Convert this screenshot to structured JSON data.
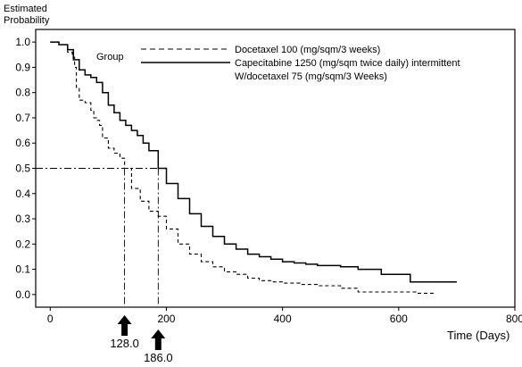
{
  "chart_data": {
    "type": "line",
    "title": "",
    "ylabel": "Estimated Probability",
    "xlabel": "Time (Days)",
    "xlim": [
      -25,
      800
    ],
    "ylim": [
      -0.05,
      1.05
    ],
    "x_ticks": [
      0,
      200,
      400,
      600,
      800
    ],
    "y_ticks": [
      0.0,
      0.1,
      0.2,
      0.3,
      0.4,
      0.5,
      0.6,
      0.7,
      0.8,
      0.9,
      1.0
    ],
    "y_tick_labels": [
      "0.0",
      "0.1",
      "0.2",
      "0.3",
      "0.4",
      "0.5",
      "0.6",
      "0.7",
      "0.8",
      "0.9",
      "1.0"
    ],
    "grid": false,
    "legend": {
      "title": "Group",
      "position": "top-right",
      "entries": [
        {
          "series": 0,
          "lines": [
            "Docetaxel 100 (mg/sqm/3 weeks)"
          ]
        },
        {
          "series": 1,
          "lines": [
            "Capecitabine 1250 (mg/sqm twice daily) intermittent",
            "W/docetaxel 75 (mg/sqm/3 Weeks)"
          ]
        }
      ]
    },
    "series": [
      {
        "name": "Docetaxel 100 (mg/sqm/3 weeks)",
        "style": "dashed",
        "x": [
          0,
          15,
          30,
          38,
          42,
          45,
          50,
          60,
          70,
          75,
          80,
          85,
          90,
          100,
          110,
          120,
          128,
          140,
          155,
          170,
          186,
          200,
          220,
          240,
          260,
          280,
          300,
          320,
          340,
          360,
          380,
          400,
          430,
          460,
          500,
          530,
          560,
          600,
          630,
          660
        ],
        "y": [
          1.0,
          0.99,
          0.96,
          0.94,
          0.9,
          0.82,
          0.77,
          0.76,
          0.73,
          0.7,
          0.69,
          0.67,
          0.62,
          0.58,
          0.56,
          0.54,
          0.5,
          0.42,
          0.37,
          0.33,
          0.31,
          0.26,
          0.2,
          0.16,
          0.13,
          0.11,
          0.09,
          0.08,
          0.065,
          0.055,
          0.05,
          0.045,
          0.04,
          0.035,
          0.025,
          0.01,
          0.01,
          0.01,
          0.005,
          0.005
        ]
      },
      {
        "name": "Capecitabine 1250 (mg/sqm twice daily) intermittent W/docetaxel 75 (mg/sqm/3 Weeks)",
        "style": "solid",
        "x": [
          0,
          15,
          30,
          40,
          50,
          60,
          70,
          80,
          90,
          100,
          110,
          120,
          130,
          140,
          150,
          160,
          170,
          186,
          200,
          220,
          240,
          260,
          280,
          300,
          320,
          340,
          360,
          380,
          400,
          420,
          440,
          460,
          480,
          500,
          530,
          570,
          600,
          620,
          660,
          700
        ],
        "y": [
          1.0,
          0.99,
          0.97,
          0.93,
          0.89,
          0.87,
          0.86,
          0.84,
          0.8,
          0.75,
          0.72,
          0.69,
          0.67,
          0.65,
          0.63,
          0.6,
          0.57,
          0.5,
          0.44,
          0.38,
          0.32,
          0.27,
          0.23,
          0.2,
          0.18,
          0.16,
          0.15,
          0.14,
          0.13,
          0.125,
          0.12,
          0.115,
          0.115,
          0.11,
          0.1,
          0.08,
          0.08,
          0.05,
          0.05,
          0.05
        ]
      }
    ],
    "median_line": {
      "y": 0.5,
      "medians": [
        128.0,
        186.0
      ],
      "labels": [
        "128.0",
        "186.0"
      ]
    }
  }
}
